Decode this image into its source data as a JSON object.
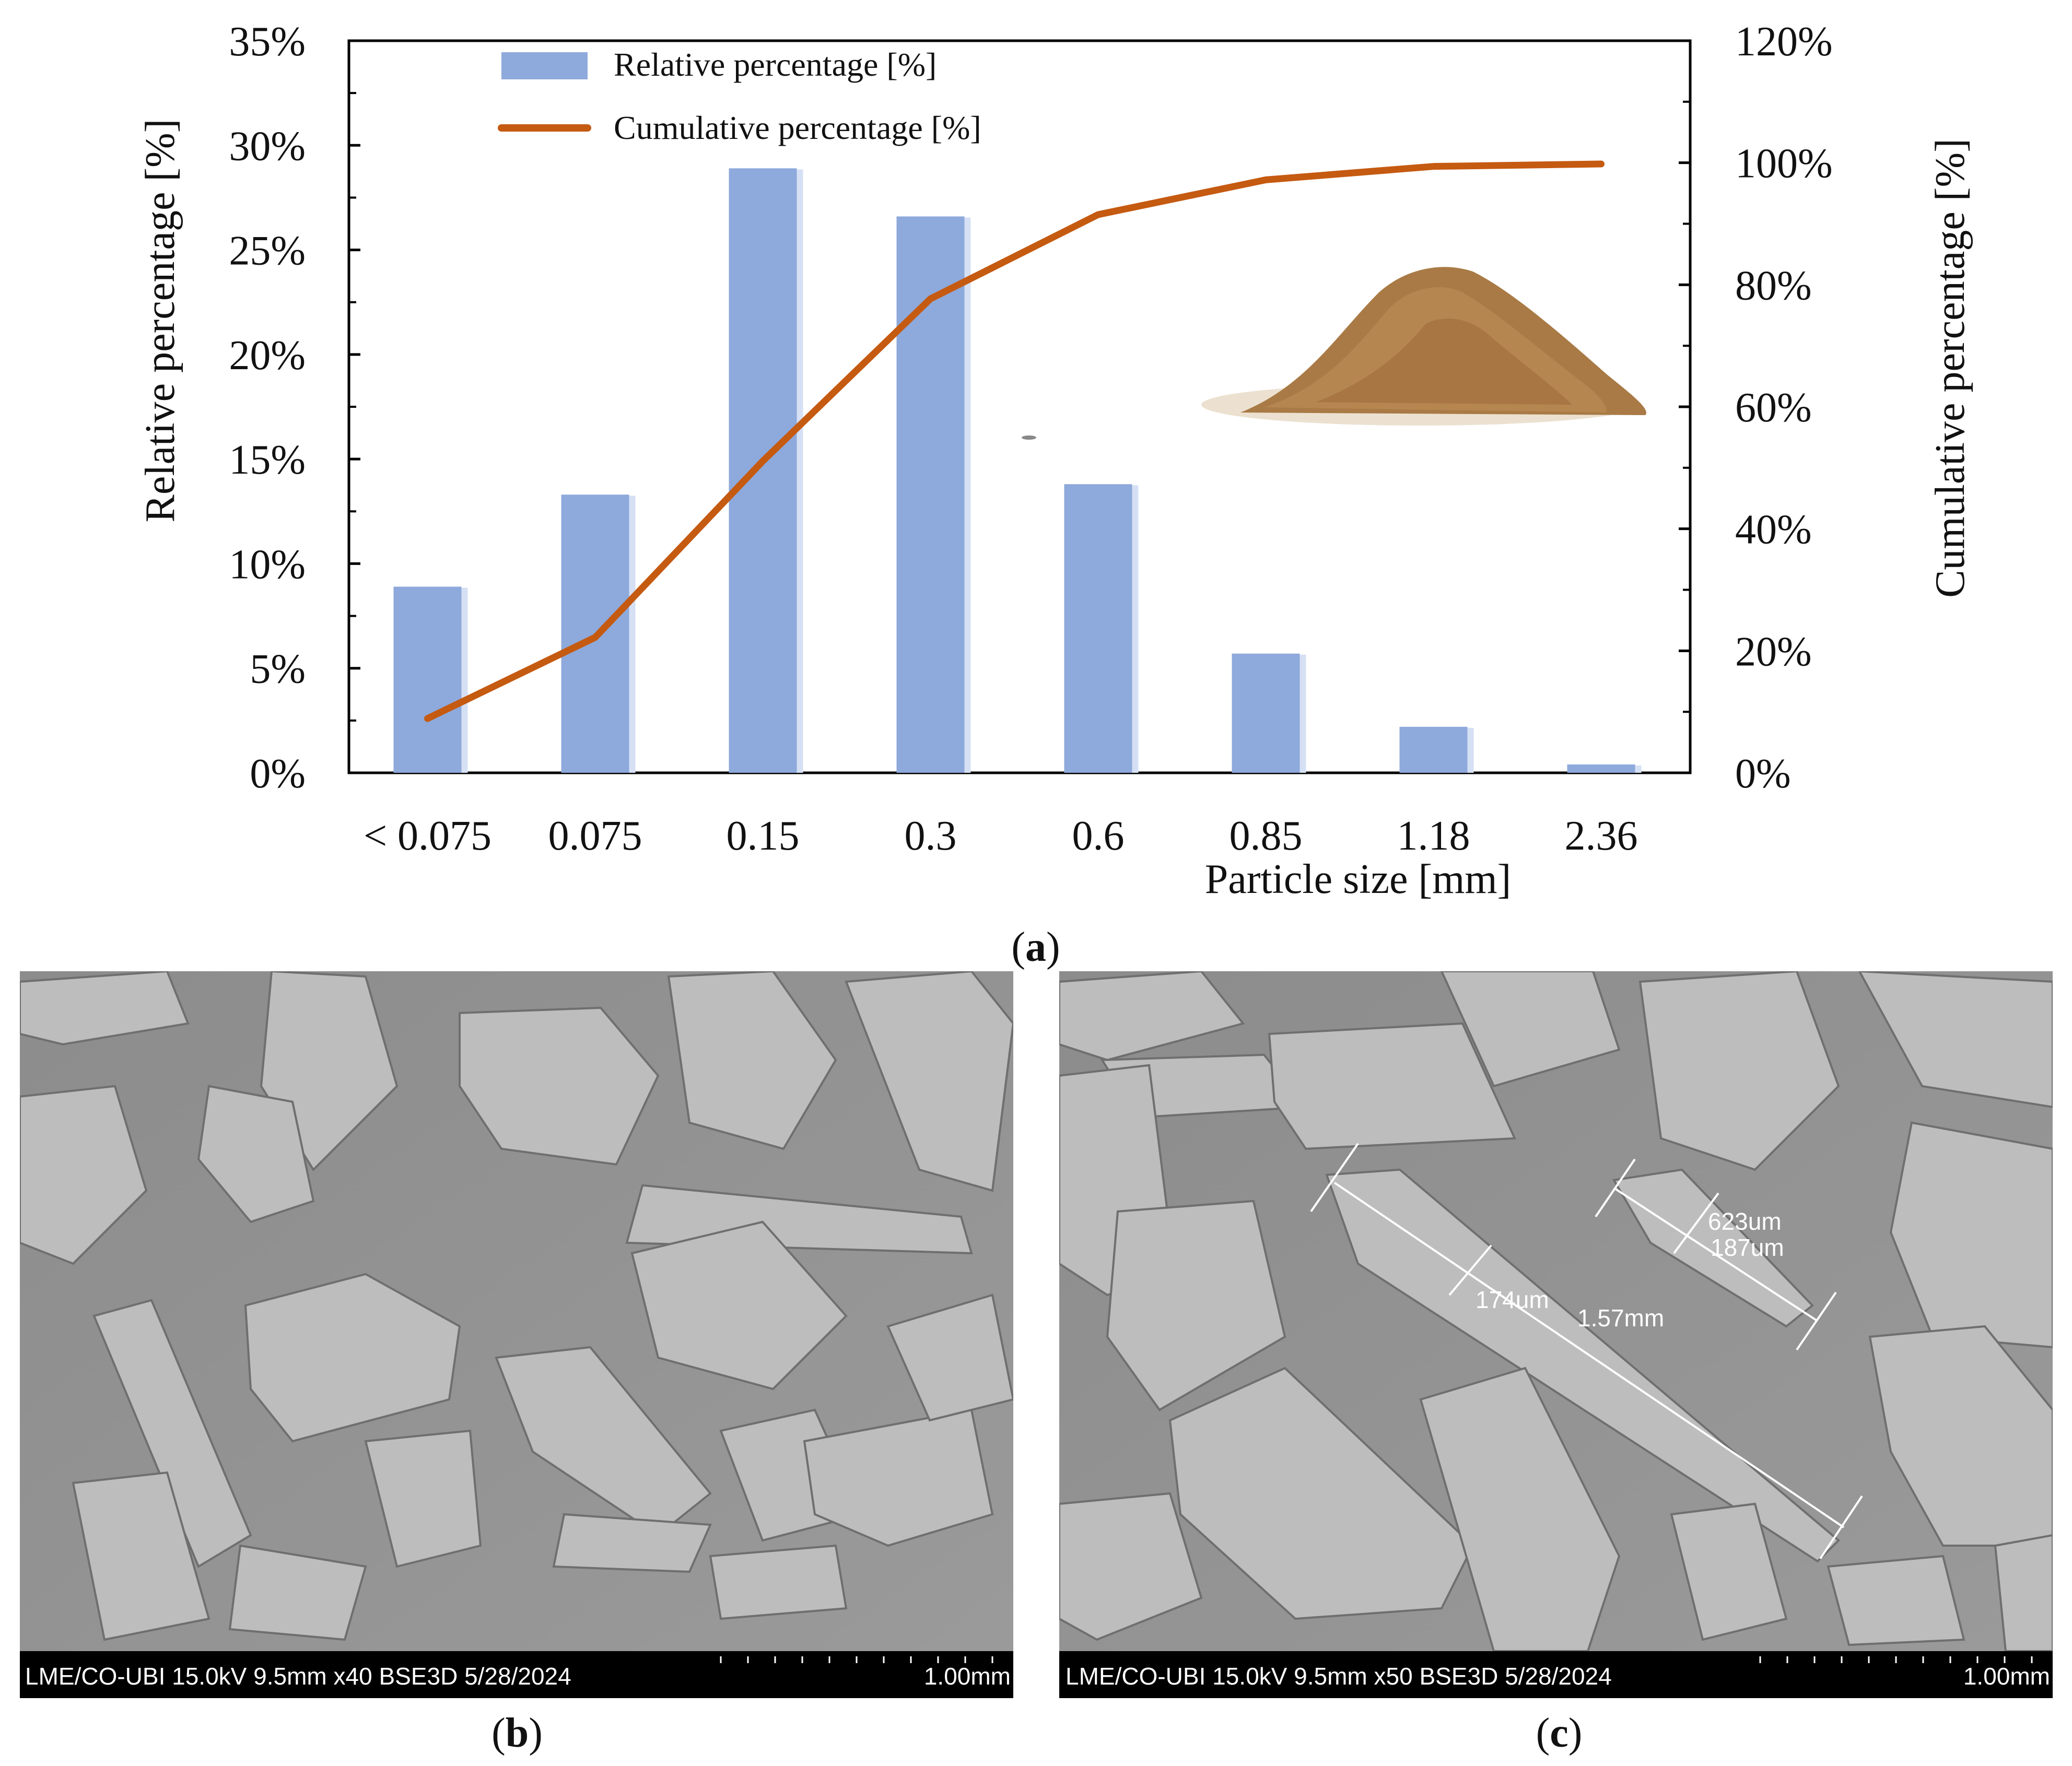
{
  "chart_data": {
    "type": "bar",
    "title": "",
    "xlabel": "Particle size [mm]",
    "ylabel": "Relative percentage [%]",
    "y2label": "Cumulative percentage [%]",
    "categories": [
      "< 0.075",
      "0.075",
      "0.15",
      "0.3",
      "0.6",
      "0.85",
      "1.18",
      "2.36"
    ],
    "series": [
      {
        "name": "Relative percentage [%]",
        "type": "bar",
        "axis": "left",
        "color": "#8EA9DB",
        "values": [
          8.9,
          13.3,
          28.9,
          26.6,
          13.8,
          5.7,
          2.2,
          0.4
        ]
      },
      {
        "name": "Cumulative percentage  [%]",
        "type": "line",
        "axis": "right",
        "color": "#C55A11",
        "values": [
          8.9,
          22.2,
          51.1,
          77.7,
          91.5,
          97.2,
          99.4,
          99.8
        ]
      }
    ],
    "ylim": [
      0,
      35
    ],
    "y2lim": [
      0,
      120
    ],
    "y_ticks": [
      "0%",
      "5%",
      "10%",
      "15%",
      "20%",
      "25%",
      "30%",
      "35%"
    ],
    "y2_ticks": [
      "0%",
      "20%",
      "40%",
      "60%",
      "80%",
      "100%",
      "120%"
    ],
    "legend": "top-left inside",
    "grid": false
  },
  "captions": {
    "a": {
      "open": "(",
      "letter": "a",
      "close": ")"
    },
    "b": {
      "open": "(",
      "letter": "b",
      "close": ")"
    },
    "c": {
      "open": "(",
      "letter": "c",
      "close": ")"
    }
  },
  "sem_b": {
    "info": "LME/CO-UBI 15.0kV 9.5mm x40 BSE3D 5/28/2024",
    "scale": "1.00mm"
  },
  "sem_c": {
    "info": "LME/CO-UBI 15.0kV 9.5mm x50 BSE3D 5/28/2024",
    "scale": "1.00mm",
    "measurements": [
      "174um",
      "1.57mm",
      "623um",
      "187um"
    ]
  },
  "colors": {
    "bar": "#8EA9DB",
    "bar_shadow": "#D6E0F4",
    "line": "#C55A11",
    "sem_bg": "#8f8f8f",
    "sawdust": "#A97A45"
  }
}
